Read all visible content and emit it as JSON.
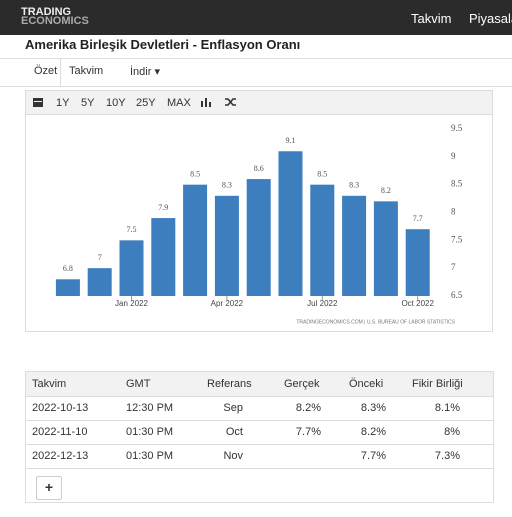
{
  "header": {
    "logo": [
      "TRADING",
      "ECONOMICS"
    ],
    "nav": [
      "Takvim",
      "Piyasalar"
    ]
  },
  "page_title": "Amerika Birleşik Devletleri - Enflasyon Oranı",
  "tabs": [
    "Özet",
    "Takvim",
    "İndir ▾"
  ],
  "toolbar": [
    "1Y",
    "5Y",
    "10Y",
    "25Y",
    "MAX"
  ],
  "chart_data": {
    "type": "bar",
    "categories": [
      null,
      null,
      "Jan 2022",
      null,
      null,
      "Apr 2022",
      null,
      null,
      "Jul 2022",
      null,
      null,
      "Oct 2022"
    ],
    "values": [
      6.8,
      7,
      7.5,
      7.9,
      8.5,
      8.3,
      8.6,
      9.1,
      8.5,
      8.3,
      8.2,
      7.7
    ],
    "color": "#3d7ebf",
    "ylim": [
      6.5,
      9.5
    ],
    "yticks": [
      6.5,
      7,
      7.5,
      8,
      8.5,
      9,
      9.5
    ],
    "grid": false,
    "source": "TRADINGECONOMICS.COM | U.S. BUREAU OF LABOR STATISTICS"
  },
  "table": {
    "columns": [
      "Takvim",
      "GMT",
      "Referans",
      "Gerçek",
      "Önceki",
      "Fikir Birliği"
    ],
    "rows": [
      [
        "2022-10-13",
        "12:30 PM",
        "Sep",
        "8.2%",
        "8.3%",
        "8.1%"
      ],
      [
        "2022-11-10",
        "01:30 PM",
        "Oct",
        "7.7%",
        "8.2%",
        "8%"
      ],
      [
        "2022-12-13",
        "01:30 PM",
        "Nov",
        "",
        "7.7%",
        "7.3%"
      ]
    ],
    "add_button": "+"
  }
}
